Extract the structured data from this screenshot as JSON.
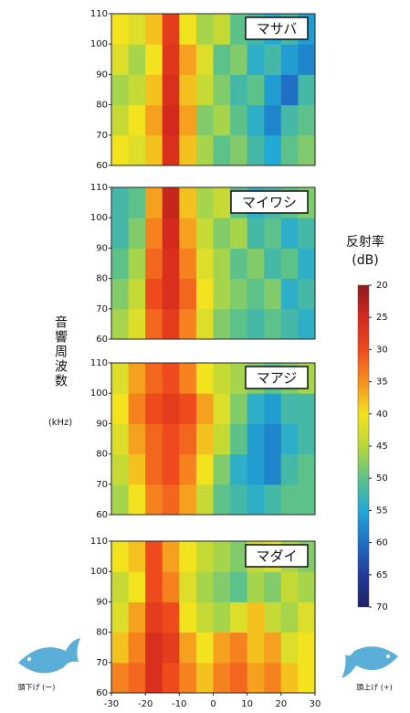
{
  "chart_data": [
    {
      "type": "heatmap",
      "title": "マサバ",
      "xbins": [
        -30,
        -25,
        -20,
        -15,
        -10,
        -5,
        0,
        5,
        10,
        15,
        20,
        25,
        30
      ],
      "ybins": [
        60,
        70,
        80,
        90,
        100,
        110
      ],
      "xlim": [
        -30,
        30
      ],
      "ylim": [
        60,
        110
      ],
      "yticks": [
        60,
        70,
        80,
        90,
        100,
        110
      ],
      "z": [
        [
          40,
          42,
          38,
          26,
          38,
          46,
          50,
          48,
          52,
          55,
          50,
          48
        ],
        [
          44,
          40,
          36,
          25,
          36,
          48,
          46,
          50,
          54,
          58,
          52,
          50
        ],
        [
          46,
          44,
          38,
          26,
          38,
          44,
          48,
          52,
          50,
          56,
          60,
          52
        ],
        [
          42,
          46,
          40,
          27,
          36,
          42,
          50,
          48,
          54,
          52,
          56,
          58
        ],
        [
          40,
          42,
          38,
          28,
          40,
          46,
          44,
          50,
          52,
          55,
          52,
          56
        ]
      ]
    },
    {
      "type": "heatmap",
      "title": "マイワシ",
      "xbins": [
        -30,
        -25,
        -20,
        -15,
        -10,
        -5,
        0,
        5,
        10,
        15,
        20,
        25,
        30
      ],
      "ybins": [
        60,
        70,
        80,
        90,
        100,
        110
      ],
      "xlim": [
        -30,
        30
      ],
      "ylim": [
        60,
        110
      ],
      "yticks": [
        60,
        70,
        80,
        90,
        100,
        110
      ],
      "z": [
        [
          46,
          42,
          32,
          28,
          34,
          42,
          48,
          50,
          52,
          50,
          52,
          54
        ],
        [
          48,
          44,
          30,
          26,
          32,
          40,
          46,
          48,
          50,
          48,
          54,
          52
        ],
        [
          50,
          46,
          32,
          26,
          34,
          42,
          46,
          50,
          48,
          52,
          50,
          54
        ],
        [
          52,
          48,
          34,
          25,
          36,
          44,
          48,
          46,
          52,
          50,
          54,
          52
        ],
        [
          52,
          50,
          36,
          24,
          38,
          46,
          44,
          50,
          54,
          52,
          50,
          48
        ]
      ]
    },
    {
      "type": "heatmap",
      "title": "マアジ",
      "xbins": [
        -30,
        -25,
        -20,
        -15,
        -10,
        -5,
        0,
        5,
        10,
        15,
        20,
        25,
        30
      ],
      "ybins": [
        60,
        70,
        80,
        90,
        100,
        110
      ],
      "xlim": [
        -30,
        30
      ],
      "ylim": [
        60,
        110
      ],
      "yticks": [
        60,
        70,
        80,
        90,
        100,
        110
      ],
      "z": [
        [
          46,
          40,
          34,
          32,
          36,
          44,
          50,
          52,
          54,
          52,
          50,
          50
        ],
        [
          44,
          38,
          32,
          30,
          34,
          40,
          48,
          54,
          56,
          58,
          52,
          50
        ],
        [
          42,
          36,
          32,
          30,
          32,
          38,
          44,
          50,
          56,
          58,
          54,
          52
        ],
        [
          40,
          34,
          30,
          28,
          30,
          36,
          42,
          48,
          54,
          56,
          52,
          52
        ],
        [
          42,
          36,
          32,
          30,
          34,
          40,
          44,
          46,
          48,
          50,
          48,
          46
        ]
      ]
    },
    {
      "type": "heatmap",
      "title": "マダイ",
      "xbins": [
        -30,
        -25,
        -20,
        -15,
        -10,
        -5,
        0,
        5,
        10,
        15,
        20,
        25,
        30
      ],
      "ybins": [
        60,
        70,
        80,
        90,
        100,
        110
      ],
      "xlim": [
        -30,
        30
      ],
      "ylim": [
        60,
        110
      ],
      "yticks": [
        60,
        70,
        80,
        90,
        100,
        110
      ],
      "xticks": [
        -30,
        -20,
        -10,
        0,
        10,
        20,
        30
      ],
      "z": [
        [
          34,
          32,
          26,
          30,
          34,
          38,
          34,
          32,
          36,
          34,
          38,
          40
        ],
        [
          38,
          34,
          26,
          28,
          36,
          40,
          36,
          34,
          38,
          36,
          42,
          40
        ],
        [
          42,
          36,
          28,
          30,
          40,
          44,
          46,
          42,
          38,
          44,
          46,
          42
        ],
        [
          44,
          40,
          30,
          34,
          42,
          46,
          48,
          50,
          46,
          48,
          44,
          46
        ],
        [
          40,
          38,
          30,
          36,
          40,
          44,
          46,
          48,
          44,
          42,
          46,
          48
        ]
      ]
    }
  ],
  "y_label": "音響周波数",
  "y_unit": "(kHz)",
  "colorbar": {
    "label": "反射率",
    "unit": "(dB)",
    "lim": [
      20,
      70
    ],
    "ticks": [
      20,
      25,
      30,
      35,
      40,
      45,
      50,
      55,
      60,
      65,
      70
    ],
    "colormap": [
      "#8a1a1a",
      "#d42a1e",
      "#ef4a1e",
      "#f6901e",
      "#f3e21e",
      "#b9d83a",
      "#5cc28a",
      "#22a9d6",
      "#1f6fc4",
      "#22399a",
      "#1e2166"
    ]
  },
  "fish_left": "頭下げ (ー)",
  "fish_right": "頭上げ (+)"
}
